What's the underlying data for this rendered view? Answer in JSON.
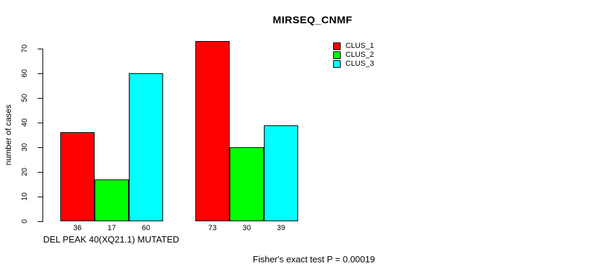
{
  "chart_data": {
    "type": "bar",
    "title": "MIRSEQ_CNMF",
    "ylabel": "number of cases",
    "xlabel": "DEL PEAK 40(XQ21.1) MUTATED",
    "footnote": "Fisher's exact test P = 0.00019",
    "categories": [
      "",
      ""
    ],
    "series": [
      {
        "name": "CLUS_1",
        "color": "#FF0000",
        "values": [
          36,
          73
        ]
      },
      {
        "name": "CLUS_2",
        "color": "#00FF00",
        "values": [
          17,
          30
        ]
      },
      {
        "name": "CLUS_3",
        "color": "#00FFFF",
        "values": [
          60,
          39
        ]
      }
    ],
    "bar_value_labels": [
      [
        36,
        17,
        60
      ],
      [
        73,
        30,
        39
      ]
    ],
    "ylim": [
      0,
      70
    ],
    "yticks": [
      0,
      10,
      20,
      30,
      40,
      50,
      60,
      70
    ],
    "grid": false,
    "legend_position": "top-right",
    "legend_entries": [
      "CLUS_1",
      "CLUS_2",
      "CLUS_3"
    ]
  }
}
